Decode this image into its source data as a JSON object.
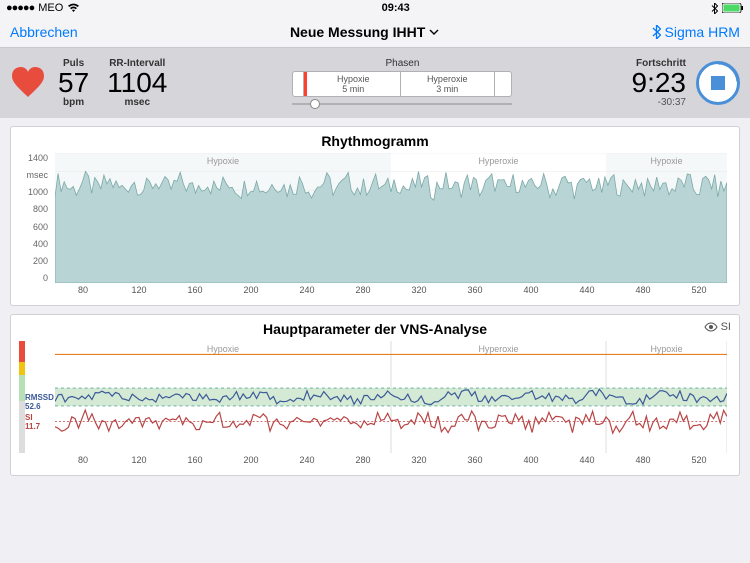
{
  "status": {
    "carrier": "MEO",
    "wifi_icon": "wifi",
    "time": "09:43",
    "bt_icon": "bluetooth",
    "battery": 95
  },
  "nav": {
    "cancel": "Abbrechen",
    "title": "Neue Messung IHHT",
    "device": "Sigma HRM"
  },
  "metrics": {
    "pulse_label": "Puls",
    "pulse_value": "57",
    "pulse_unit": "bpm",
    "rr_label": "RR-Intervall",
    "rr_value": "1104",
    "rr_unit": "msec",
    "phases_title": "Phasen",
    "phase1_name": "Hypoxie",
    "phase1_dur": "5 min",
    "phase2_name": "Hyperoxie",
    "phase2_dur": "3 min",
    "progress_label": "Fortschritt",
    "progress_time": "9:23",
    "progress_remaining": "-30:37"
  },
  "chart1": {
    "title": "Rhythmogramm",
    "y_unit": "msec",
    "ylim": [
      0,
      1400
    ],
    "y_ticks": [
      "1400",
      "msec",
      "1000",
      "800",
      "600",
      "400",
      "200",
      "0"
    ],
    "x_ticks": [
      "80",
      "120",
      "160",
      "200",
      "240",
      "280",
      "320",
      "360",
      "400",
      "440",
      "480",
      "520"
    ],
    "phase_regions": [
      {
        "label": "Hypoxie",
        "start": 0.0,
        "end": 0.5,
        "bg": "#f5f8f8"
      },
      {
        "label": "Hyperoxie",
        "start": 0.5,
        "end": 0.82,
        "bg": "#ffffff"
      },
      {
        "label": "Hypoxie",
        "start": 0.82,
        "end": 1.0,
        "bg": "#f5f8f8"
      }
    ],
    "fill_color": "#b8d4d4",
    "stroke_color": "#7aa8a8",
    "grid_color": "#e8e8e8",
    "data_mean": 1050,
    "data_noise": 120
  },
  "chart2": {
    "title": "Hauptparameter der VNS-Analyse",
    "si_toggle_label": "SI",
    "x_ticks": [
      "80",
      "120",
      "160",
      "200",
      "240",
      "280",
      "320",
      "360",
      "400",
      "440",
      "480",
      "520"
    ],
    "phase_regions": [
      {
        "label": "Hypoxie",
        "start": 0.0,
        "end": 0.5
      },
      {
        "label": "Hyperoxie",
        "start": 0.5,
        "end": 0.82
      },
      {
        "label": "Hypoxie",
        "start": 0.82,
        "end": 1.0
      }
    ],
    "rmssd": {
      "label": "RMSSD",
      "value": "52.6",
      "color": "#3b5998"
    },
    "si": {
      "label": "SI",
      "value": "11.7",
      "color": "#b84444"
    },
    "top_line_color": "#e67e22",
    "green_band_color": "#d4ead4",
    "grid_color": "#e8e8e8"
  }
}
